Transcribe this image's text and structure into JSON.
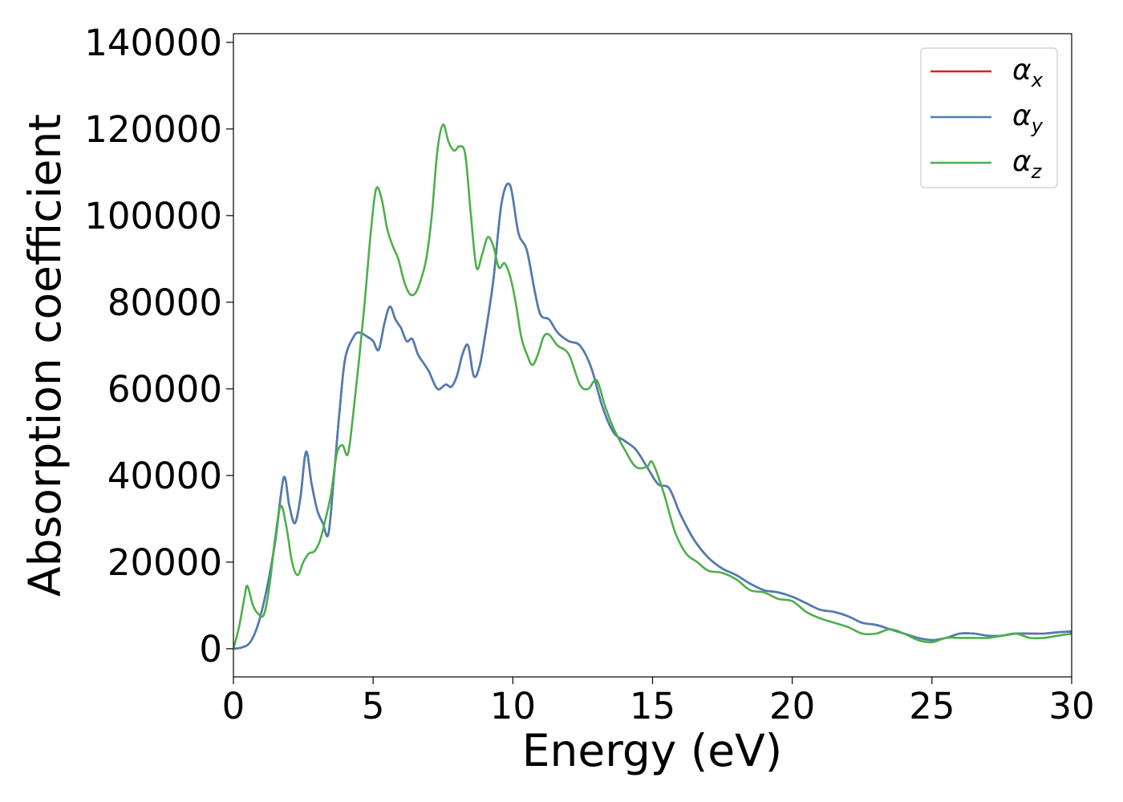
{
  "chart_data": {
    "type": "line",
    "xlabel": "Energy (eV)",
    "ylabel": "Absorption coefficient",
    "xlim": [
      0,
      30
    ],
    "ylim": [
      -6500,
      142000
    ],
    "xticks": [
      0,
      5,
      10,
      15,
      20,
      25,
      30
    ],
    "yticks": [
      0,
      20000,
      40000,
      60000,
      80000,
      100000,
      120000,
      140000
    ],
    "grid": false,
    "legend_position": "top-right",
    "series": [
      {
        "name": "α_x",
        "symbol": "α",
        "subscript": "x",
        "color": "#e41a1c",
        "x": [
          0,
          0.3,
          0.6,
          0.9,
          1.2,
          1.5,
          1.8,
          2.0,
          2.2,
          2.4,
          2.6,
          2.8,
          3.0,
          3.2,
          3.4,
          3.6,
          3.8,
          4.0,
          4.3,
          4.5,
          4.8,
          5.0,
          5.2,
          5.4,
          5.6,
          5.8,
          6.0,
          6.2,
          6.4,
          6.6,
          6.8,
          7.0,
          7.3,
          7.6,
          7.8,
          8.0,
          8.2,
          8.4,
          8.6,
          8.8,
          9.0,
          9.3,
          9.6,
          9.9,
          10.2,
          10.5,
          10.8,
          11.0,
          11.3,
          11.6,
          12.0,
          12.4,
          12.8,
          13.2,
          13.6,
          14.0,
          14.4,
          14.8,
          15.2,
          15.6,
          16.0,
          16.5,
          17.0,
          17.5,
          18.0,
          18.5,
          19.0,
          19.5,
          20.0,
          20.5,
          21.0,
          21.5,
          22.0,
          22.5,
          23.0,
          23.5,
          24.0,
          24.5,
          25.0,
          25.5,
          26.0,
          26.5,
          27.0,
          27.5,
          28.0,
          28.5,
          29.0,
          29.5,
          30.0
        ],
        "y": [
          0,
          300,
          1500,
          6000,
          14000,
          25000,
          39500,
          33000,
          29000,
          35000,
          45500,
          38000,
          32000,
          29000,
          26500,
          40000,
          55000,
          67000,
          72000,
          73000,
          72000,
          71000,
          69000,
          75000,
          79000,
          76000,
          74000,
          71000,
          71500,
          68000,
          66000,
          64000,
          60000,
          61000,
          60500,
          63000,
          68000,
          70000,
          63000,
          65000,
          72000,
          85000,
          103000,
          107000,
          96000,
          92000,
          82000,
          77000,
          76000,
          73000,
          71000,
          70000,
          65000,
          56000,
          50000,
          48000,
          46000,
          42000,
          38000,
          37000,
          31000,
          25000,
          21000,
          18500,
          17000,
          15000,
          13500,
          13000,
          12000,
          10500,
          9000,
          8500,
          7500,
          6000,
          5500,
          4500,
          3500,
          2500,
          2000,
          2500,
          3500,
          3500,
          3000,
          3000,
          3500,
          3500,
          3500,
          3800,
          4000
        ]
      },
      {
        "name": "α_y",
        "symbol": "α",
        "subscript": "y",
        "color": "#4a7fb5",
        "x": [
          0,
          0.3,
          0.6,
          0.9,
          1.2,
          1.5,
          1.8,
          2.0,
          2.2,
          2.4,
          2.6,
          2.8,
          3.0,
          3.2,
          3.4,
          3.6,
          3.8,
          4.0,
          4.3,
          4.5,
          4.8,
          5.0,
          5.2,
          5.4,
          5.6,
          5.8,
          6.0,
          6.2,
          6.4,
          6.6,
          6.8,
          7.0,
          7.3,
          7.6,
          7.8,
          8.0,
          8.2,
          8.4,
          8.6,
          8.8,
          9.0,
          9.3,
          9.6,
          9.9,
          10.2,
          10.5,
          10.8,
          11.0,
          11.3,
          11.6,
          12.0,
          12.4,
          12.8,
          13.2,
          13.6,
          14.0,
          14.4,
          14.8,
          15.2,
          15.6,
          16.0,
          16.5,
          17.0,
          17.5,
          18.0,
          18.5,
          19.0,
          19.5,
          20.0,
          20.5,
          21.0,
          21.5,
          22.0,
          22.5,
          23.0,
          23.5,
          24.0,
          24.5,
          25.0,
          25.5,
          26.0,
          26.5,
          27.0,
          27.5,
          28.0,
          28.5,
          29.0,
          29.5,
          30.0
        ],
        "y": [
          0,
          300,
          1500,
          6000,
          14000,
          25000,
          39500,
          33000,
          29000,
          35000,
          45500,
          38000,
          32000,
          29000,
          26500,
          40000,
          55000,
          67000,
          72000,
          73000,
          72000,
          71000,
          69000,
          75000,
          79000,
          76000,
          74000,
          71000,
          71500,
          68000,
          66000,
          64000,
          60000,
          61000,
          60500,
          63000,
          68000,
          70000,
          63000,
          65000,
          72000,
          85000,
          103000,
          107000,
          96000,
          92000,
          82000,
          77000,
          76000,
          73000,
          71000,
          70000,
          65000,
          56000,
          50000,
          48000,
          46000,
          42000,
          38000,
          37000,
          31000,
          25000,
          21000,
          18500,
          17000,
          15000,
          13500,
          13000,
          12000,
          10500,
          9000,
          8500,
          7500,
          6000,
          5500,
          4500,
          3500,
          2500,
          2000,
          2500,
          3500,
          3500,
          3000,
          3000,
          3500,
          3500,
          3500,
          3800,
          4000
        ]
      },
      {
        "name": "α_z",
        "symbol": "α",
        "subscript": "z",
        "color": "#4daf4a",
        "x": [
          0,
          0.2,
          0.4,
          0.5,
          0.7,
          0.9,
          1.1,
          1.3,
          1.5,
          1.7,
          1.9,
          2.1,
          2.3,
          2.5,
          2.7,
          2.9,
          3.1,
          3.3,
          3.5,
          3.7,
          3.9,
          4.1,
          4.3,
          4.5,
          4.7,
          4.9,
          5.1,
          5.3,
          5.5,
          5.7,
          5.9,
          6.1,
          6.3,
          6.5,
          6.7,
          6.9,
          7.1,
          7.3,
          7.5,
          7.7,
          7.9,
          8.1,
          8.3,
          8.5,
          8.7,
          8.9,
          9.1,
          9.3,
          9.5,
          9.7,
          9.9,
          10.1,
          10.3,
          10.5,
          10.7,
          10.9,
          11.1,
          11.3,
          11.6,
          12.0,
          12.4,
          12.7,
          13.0,
          13.3,
          13.6,
          14.0,
          14.4,
          14.8,
          15.0,
          15.4,
          15.8,
          16.2,
          16.6,
          17.0,
          17.5,
          18.0,
          18.5,
          19.0,
          19.5,
          20.0,
          20.5,
          21.0,
          21.5,
          22.0,
          22.5,
          23.0,
          23.5,
          24.0,
          24.5,
          25.0,
          25.5,
          26.0,
          26.5,
          27.0,
          27.5,
          28.0,
          28.5,
          29.0,
          29.5,
          30.0
        ],
        "y": [
          0,
          5000,
          12000,
          14500,
          10000,
          8000,
          8000,
          15000,
          26000,
          33000,
          28000,
          20000,
          17000,
          20000,
          22000,
          22500,
          25000,
          30000,
          36000,
          45000,
          47000,
          45000,
          55000,
          67000,
          80000,
          95000,
          106000,
          104000,
          97000,
          93000,
          90000,
          85000,
          82000,
          82000,
          85000,
          90000,
          100000,
          115000,
          121000,
          117000,
          115000,
          116000,
          114000,
          100000,
          88000,
          91000,
          95000,
          93000,
          88000,
          89000,
          86000,
          80000,
          72000,
          68000,
          65500,
          68000,
          72000,
          72500,
          70000,
          68000,
          61000,
          60000,
          62000,
          56000,
          51000,
          46000,
          42000,
          42000,
          43000,
          36000,
          27000,
          22000,
          20000,
          18000,
          17500,
          16000,
          13500,
          13000,
          11500,
          11000,
          8500,
          7000,
          6000,
          5000,
          3500,
          3500,
          4500,
          3500,
          2000,
          1500,
          2500,
          2500,
          2500,
          2500,
          3000,
          3500,
          2500,
          2500,
          3000,
          3500
        ]
      }
    ]
  }
}
